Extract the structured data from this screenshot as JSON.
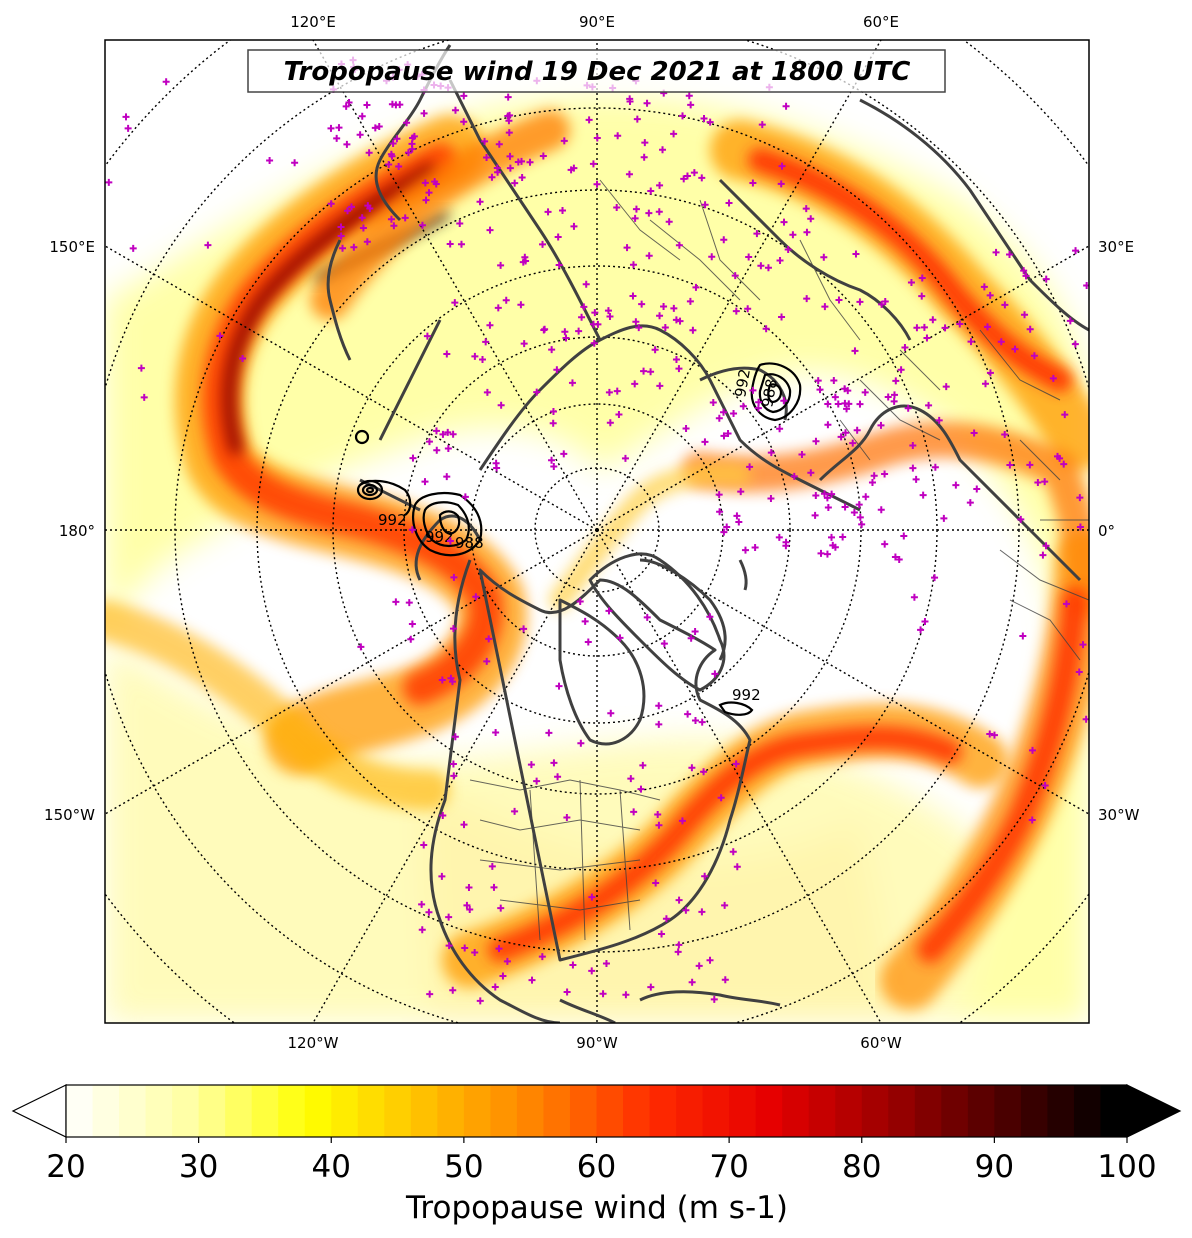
{
  "title": "Tropopause wind 19 Dec 2021 at 1800 UTC",
  "top_tick_labels": [
    "120°E",
    "90°E",
    "60°E"
  ],
  "bottom_tick_labels": [
    "120°W",
    "90°W",
    "60°W"
  ],
  "left_tick_labels": [
    "150°E",
    "180°",
    "150°W"
  ],
  "right_tick_labels": [
    "30°E",
    "0°",
    "30°W"
  ],
  "contour_labels": [
    "992",
    "992",
    "988",
    "992",
    "992",
    "988"
  ],
  "colorbar": {
    "label": "Tropopause wind (m s-1)",
    "tick_labels": [
      "20",
      "30",
      "40",
      "50",
      "60",
      "70",
      "80",
      "90",
      "100"
    ],
    "min": 20,
    "max": 100,
    "extend": "both",
    "colormap_stops": [
      "#fffff5",
      "#ffffa0",
      "#ffff00",
      "#ffc000",
      "#ff8000",
      "#ff2a00",
      "#e60000",
      "#a00000",
      "#500000",
      "#000000"
    ]
  },
  "colors": {
    "coastline": "#404040",
    "station_marker": "#c000c0",
    "graticule": "#000000"
  },
  "map": {
    "projection": "north-polar-stereographic",
    "central_meridian": "90°W",
    "station_marker_symbol": "+"
  }
}
